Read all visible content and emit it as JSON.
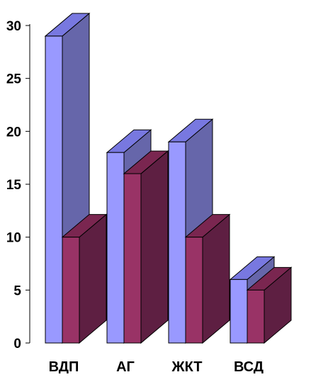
{
  "chart_data": {
    "type": "bar",
    "style": "3d-clustered",
    "categories": [
      "ВДП",
      "АГ",
      "ЖКТ",
      "ВСД"
    ],
    "series": [
      {
        "values": [
          29,
          18,
          19,
          6
        ],
        "color": "#9999ff",
        "top_color": "#7878e0",
        "side_color": "#6666aa"
      },
      {
        "values": [
          10,
          16,
          10,
          5
        ],
        "color": "#993366",
        "top_color": "#7a2650",
        "side_color": "#5e1f42"
      }
    ],
    "ylim": [
      0,
      30
    ],
    "yticks": [
      0,
      5,
      10,
      15,
      20,
      25,
      30
    ],
    "ytick_labels": [
      "0",
      "5",
      "10",
      "15",
      "20",
      "25",
      "30"
    ],
    "grid": false,
    "legend": "none",
    "title": "",
    "xlabel": "",
    "ylabel": ""
  }
}
